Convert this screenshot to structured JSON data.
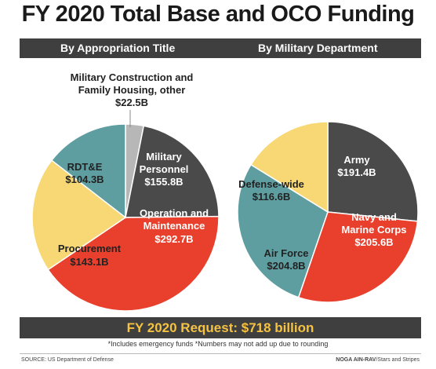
{
  "title": "FY 2020 Total Base and OCO Funding",
  "subtitles": {
    "left": "By Appropriation Title",
    "right": "By Military Department"
  },
  "request_text": "FY 2020 Request: $718 billion",
  "notes": "*Includes emergency funds   *Numbers may not add up due to rounding",
  "source": "SOURCE: US Department of Defense",
  "credit_name": "NOGA AIN-RAV",
  "credit_org": "/Stars and Stripes",
  "chart_data": [
    {
      "type": "pie",
      "title": "By Appropriation Title",
      "slices": [
        {
          "label": "Military Construction and Family Housing, other",
          "value": 22.5,
          "value_label": "$22.5B",
          "color": "#b7b7b7"
        },
        {
          "label": "Military Personnel",
          "value": 155.8,
          "value_label": "$155.8B",
          "color": "#4a4a4a"
        },
        {
          "label": "Operation and Maintenance",
          "value": 292.7,
          "value_label": "$292.7B",
          "color": "#e8402d"
        },
        {
          "label": "Procurement",
          "value": 143.1,
          "value_label": "$143.1B",
          "color": "#f7d875"
        },
        {
          "label": "RDT&E",
          "value": 104.3,
          "value_label": "$104.3B",
          "color": "#5f9ea0"
        }
      ]
    },
    {
      "type": "pie",
      "title": "By Military Department",
      "slices": [
        {
          "label": "Army",
          "value": 191.4,
          "value_label": "$191.4B",
          "color": "#4a4a4a"
        },
        {
          "label": "Navy and Marine Corps",
          "value": 205.6,
          "value_label": "$205.6B",
          "color": "#e8402d"
        },
        {
          "label": "Air Force",
          "value": 204.8,
          "value_label": "$204.8B",
          "color": "#5f9ea0"
        },
        {
          "label": "Defense-wide",
          "value": 116.6,
          "value_label": "$116.6B",
          "color": "#f7d875"
        }
      ]
    }
  ]
}
